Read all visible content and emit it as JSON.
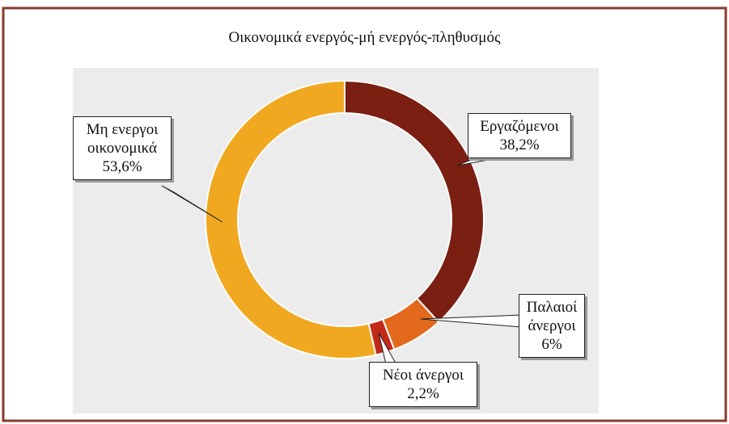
{
  "chart_data": {
    "type": "donut",
    "title": "Οικονομικά ενεργός-μή ενεργός-πληθυσμός",
    "categories": [
      "Εργαζόμενοι",
      "Παλαιοί άνεργοι",
      "Νέοι άνεργοι",
      "Μη ενεργοι οικονομικά"
    ],
    "values": [
      38.2,
      6,
      2.2,
      53.6
    ],
    "value_labels": [
      "38,2%",
      "6%",
      "2,2%",
      "53,6%"
    ],
    "colors": [
      "#7a1f12",
      "#e2691c",
      "#c22a18",
      "#f1a821"
    ]
  }
}
